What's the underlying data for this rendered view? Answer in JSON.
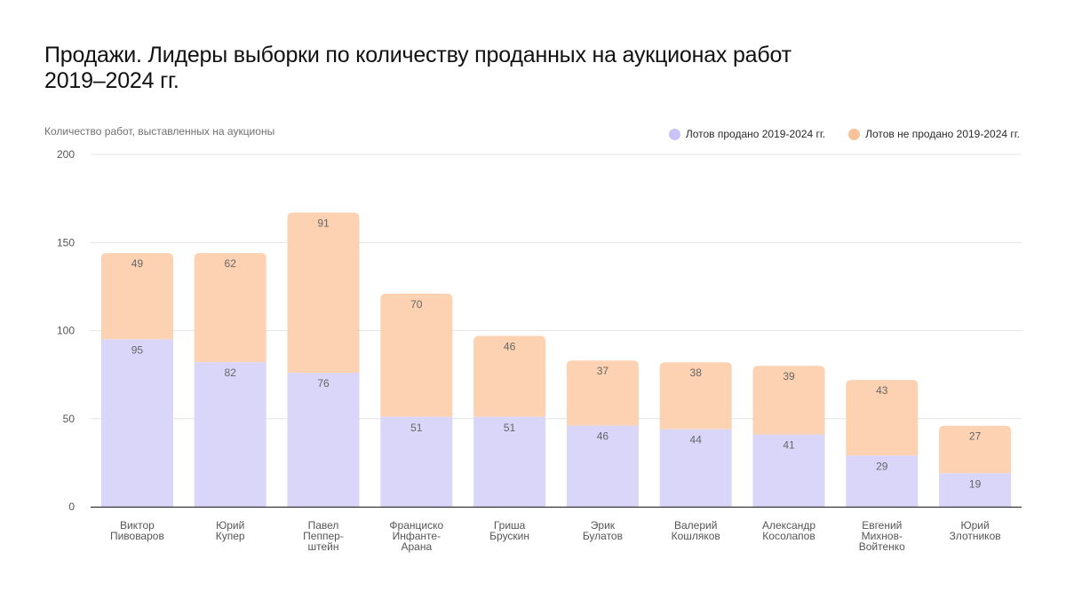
{
  "title_lines": [
    "Продажи. Лидеры выборки по количеству проданных на аукционах работ",
    "2019–2024 гг."
  ],
  "colors": {
    "sold": "#d9d6fa",
    "unsold": "#fcd2b2",
    "sold_dot": "#c9c3f7",
    "unsold_dot": "#f9c39a",
    "grid": "#e4e4e4",
    "axis": "#333333",
    "tick_text": "#555555",
    "value_text": "#666666"
  },
  "chart_data": {
    "type": "bar",
    "stacked": true,
    "title": "Продажи. Лидеры выборки по количеству проданных на аукционах работ 2019–2024 гг.",
    "ylabel": "Количество работ, выставленных на аукционы",
    "xlabel": "",
    "ylim": [
      0,
      200
    ],
    "yticks": [
      0,
      50,
      100,
      150,
      200
    ],
    "grid": true,
    "legend_position": "top-right",
    "categories": [
      [
        "Виктор",
        "Пивоваров"
      ],
      [
        "Юрий",
        "Купер"
      ],
      [
        "Павел",
        "Пеппер-",
        "штейн"
      ],
      [
        "Франциско",
        "Инфанте-",
        "Арана"
      ],
      [
        "Гриша",
        "Брускин"
      ],
      [
        "Эрик",
        "Булатов"
      ],
      [
        "Валерий",
        "Кошляков"
      ],
      [
        "Александр",
        "Косолапов"
      ],
      [
        "Евгений",
        "Михнов-",
        "Войтенко"
      ],
      [
        "Юрий",
        "Злотников"
      ]
    ],
    "series": [
      {
        "name": "Лотов продано 2019-2024 гг.",
        "values": [
          95,
          82,
          76,
          51,
          51,
          46,
          44,
          41,
          29,
          19
        ]
      },
      {
        "name": "Лотов не продано 2019-2024 гг.",
        "values": [
          49,
          62,
          91,
          70,
          46,
          37,
          38,
          39,
          43,
          27
        ]
      }
    ]
  }
}
